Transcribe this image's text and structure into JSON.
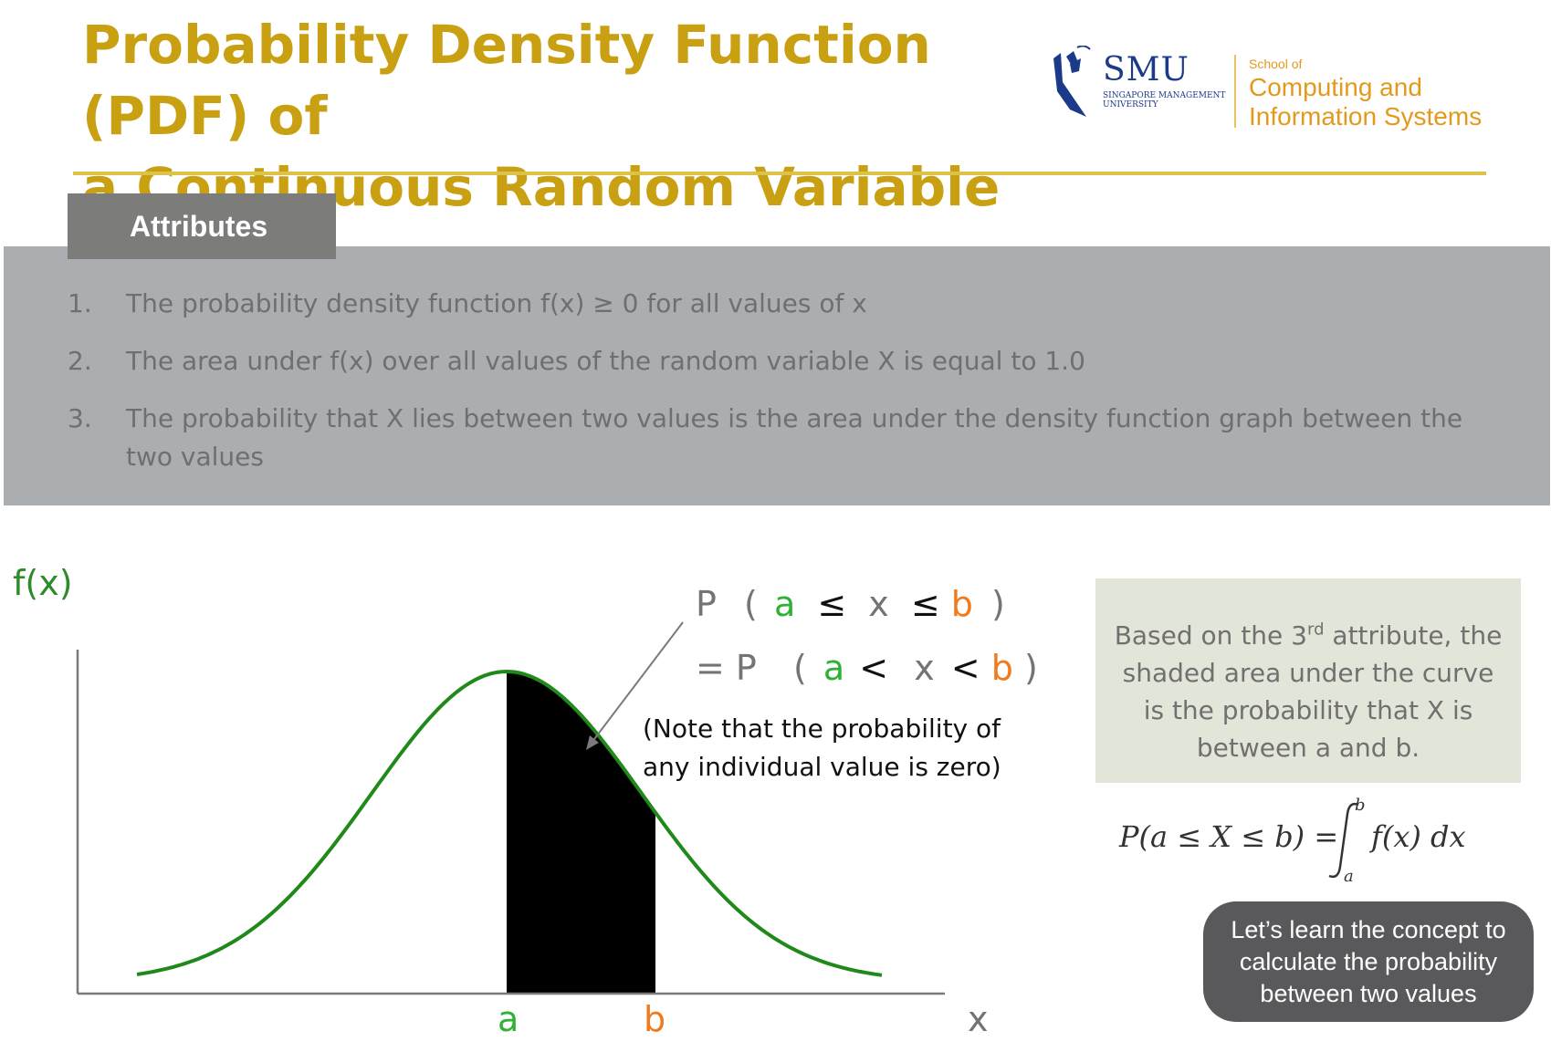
{
  "title": {
    "line1": "Probability Density Function (PDF) of",
    "line2": "a Continuous Random Variable"
  },
  "logo": {
    "smu": "SMU",
    "smu_sub_1": "SINGAPORE MANAGEMENT",
    "smu_sub_2": "UNIVERSITY",
    "school_small": "School of",
    "school_line1": "Computing and",
    "school_line2": "Information Systems"
  },
  "attributes": {
    "tab_label": "Attributes",
    "items": [
      {
        "num": "1.",
        "text": "The probability density function f(x) ≥ 0 for all values of x"
      },
      {
        "num": "2.",
        "text": "The area under f(x) over all values of the random variable X is equal to 1.0"
      },
      {
        "num": "3.",
        "text": "The probability that X lies between two values is the area under the density function graph between the two values"
      }
    ]
  },
  "chart_data": {
    "type": "area",
    "ylabel": "f(x)",
    "xlabel": "x",
    "shaded_from": "a",
    "shaded_to": "b",
    "curve_color": "#1f8a1a",
    "shade_color": "#000000"
  },
  "equation": {
    "line1": {
      "P": "P",
      "open": "(",
      "a": "a",
      "op1": "≤",
      "x": "x",
      "op2": "≤",
      "b": "b",
      "close": ")"
    },
    "line2": {
      "P": "= P",
      "open": "(",
      "a": "a",
      "op1": "<",
      "x": "x",
      "op2": "<",
      "b": "b",
      "close": ")"
    }
  },
  "note": "(Note that the probability of any individual value is zero)",
  "callout": {
    "pre": "Based on the 3",
    "sup": "rd",
    "post": " attribute, the shaded area under the curve is the probability that X is between a and b."
  },
  "formula": {
    "lhs": "P(a ≤ X ≤ b) =",
    "upper": "b",
    "lower": "a",
    "integrand": "f(x) dx"
  },
  "cta": "Let’s learn the concept to calculate the probability between two values",
  "colors": {
    "title": "#c8a012",
    "accent_green": "#2eb135",
    "accent_orange": "#f07a1e",
    "school": "#e39a1c",
    "smu_blue": "#1b3a8a"
  }
}
